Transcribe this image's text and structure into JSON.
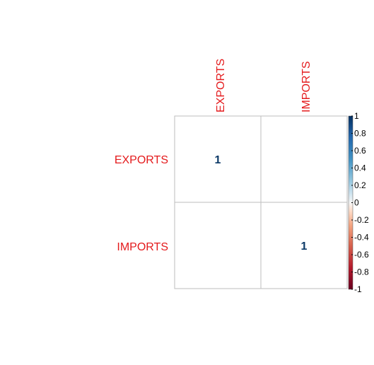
{
  "chart_data": {
    "type": "heatmap",
    "variables": [
      "EXPORTS",
      "IMPORTS"
    ],
    "matrix": [
      [
        1,
        null
      ],
      [
        null,
        1
      ]
    ],
    "cell_labels": [
      [
        "1",
        ""
      ],
      [
        "",
        "1"
      ]
    ],
    "colorbar": {
      "range": [
        -1,
        1
      ],
      "ticks": [
        "1",
        "0.8",
        "0.6",
        "0.4",
        "0.2",
        "0",
        "-0.2",
        "-0.4",
        "-0.6",
        "-0.8",
        "-1"
      ]
    },
    "colors": {
      "label": "#e41a1c",
      "high": "#053061",
      "mid": "#f7f7f7",
      "low": "#67001f",
      "grid": "#bebebe",
      "value_text": "#0a3866"
    }
  }
}
